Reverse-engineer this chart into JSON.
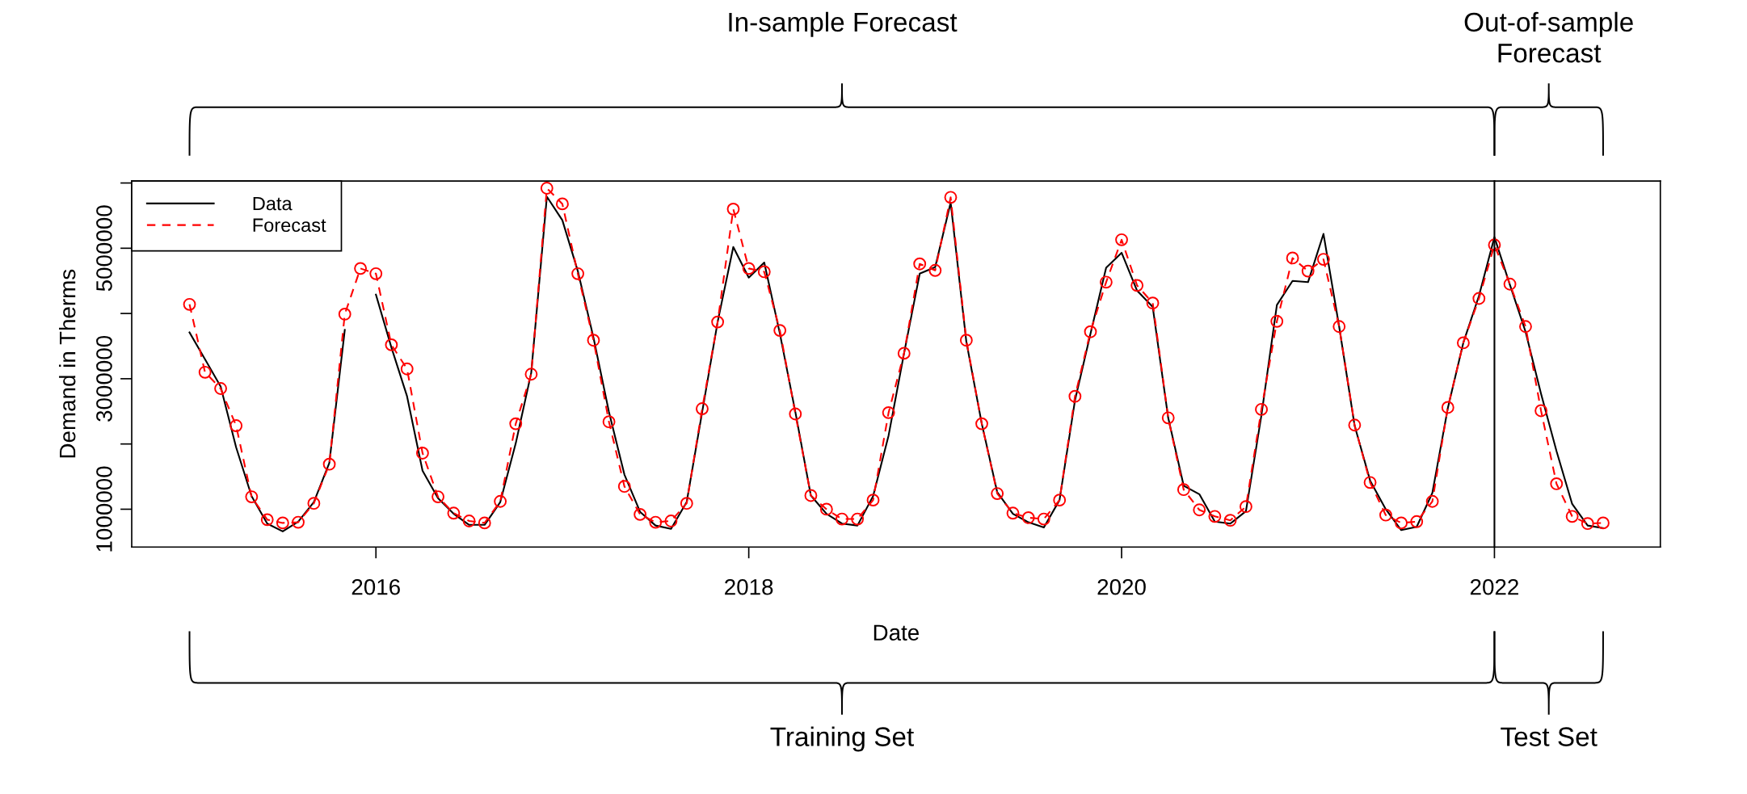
{
  "chart_data": {
    "type": "line",
    "xlabel": "Date",
    "ylabel": "Demand in Therms",
    "x": [
      2015.0,
      2015.083,
      2015.167,
      2015.25,
      2015.333,
      2015.417,
      2015.5,
      2015.583,
      2015.667,
      2015.75,
      2015.833,
      2015.917,
      2016.0,
      2016.083,
      2016.167,
      2016.25,
      2016.333,
      2016.417,
      2016.5,
      2016.583,
      2016.667,
      2016.75,
      2016.833,
      2016.917,
      2017.0,
      2017.083,
      2017.167,
      2017.25,
      2017.333,
      2017.417,
      2017.5,
      2017.583,
      2017.667,
      2017.75,
      2017.833,
      2017.917,
      2018.0,
      2018.083,
      2018.167,
      2018.25,
      2018.333,
      2018.417,
      2018.5,
      2018.583,
      2018.667,
      2018.75,
      2018.833,
      2018.917,
      2019.0,
      2019.083,
      2019.167,
      2019.25,
      2019.333,
      2019.417,
      2019.5,
      2019.583,
      2019.667,
      2019.75,
      2019.833,
      2019.917,
      2020.0,
      2020.083,
      2020.167,
      2020.25,
      2020.333,
      2020.417,
      2020.5,
      2020.583,
      2020.667,
      2020.75,
      2020.833,
      2020.917,
      2021.0,
      2021.083,
      2021.167,
      2021.25,
      2021.333,
      2021.417,
      2021.5,
      2021.583,
      2021.667,
      2021.75,
      2021.833,
      2021.917,
      2022.0,
      2022.083,
      2022.167,
      2022.25,
      2022.333,
      2022.417,
      2022.5,
      2022.583
    ],
    "series": [
      {
        "name": "Data",
        "color": "#000000",
        "marker": "none",
        "line_style": "solid",
        "values": [
          3710000,
          3300000,
          2880000,
          1950000,
          1200000,
          780000,
          660000,
          810000,
          1110000,
          1710000,
          3750000,
          null,
          4290000,
          3480000,
          2730000,
          1590000,
          1170000,
          930000,
          760000,
          760000,
          1110000,
          2010000,
          3090000,
          5790000,
          5430000,
          4650000,
          3630000,
          2490000,
          1530000,
          960000,
          750000,
          700000,
          1110000,
          2490000,
          3870000,
          5020000,
          4550000,
          4780000,
          3690000,
          2490000,
          1210000,
          930000,
          780000,
          750000,
          1200000,
          2130000,
          3390000,
          4610000,
          4710000,
          5700000,
          3570000,
          2310000,
          1260000,
          930000,
          800000,
          720000,
          1140000,
          2670000,
          3690000,
          4700000,
          4930000,
          4350000,
          4100000,
          2400000,
          1360000,
          1230000,
          810000,
          780000,
          970000,
          2440000,
          4130000,
          4500000,
          4480000,
          5220000,
          3800000,
          2280000,
          1440000,
          1000000,
          680000,
          730000,
          1250000,
          2550000,
          3550000,
          4270000,
          5170000,
          4440000,
          3720000,
          2770000,
          1890000,
          1080000,
          750000,
          710000
        ]
      },
      {
        "name": "Forecast",
        "color": "#ff0000",
        "marker": "circle",
        "line_style": "dashed",
        "values": [
          4140000,
          3100000,
          2850000,
          2280000,
          1190000,
          840000,
          790000,
          800000,
          1090000,
          1690000,
          3990000,
          4690000,
          4610000,
          3520000,
          3150000,
          1860000,
          1190000,
          940000,
          820000,
          790000,
          1120000,
          2310000,
          3070000,
          5920000,
          5680000,
          4610000,
          3590000,
          2340000,
          1350000,
          920000,
          800000,
          820000,
          1090000,
          2540000,
          3870000,
          5600000,
          4690000,
          4640000,
          3740000,
          2460000,
          1210000,
          1000000,
          850000,
          850000,
          1140000,
          2480000,
          3390000,
          4760000,
          4660000,
          5780000,
          3590000,
          2310000,
          1240000,
          940000,
          870000,
          850000,
          1140000,
          2730000,
          3720000,
          4480000,
          5130000,
          4430000,
          4160000,
          2400000,
          1300000,
          990000,
          890000,
          830000,
          1040000,
          2530000,
          3880000,
          4850000,
          4650000,
          4830000,
          3800000,
          2290000,
          1410000,
          910000,
          790000,
          810000,
          1120000,
          2560000,
          3550000,
          4230000,
          5050000,
          4450000,
          3800000,
          2510000,
          1390000,
          890000,
          780000,
          790000
        ]
      }
    ],
    "xlim": [
      2014.69,
      2022.89
    ],
    "xticks": [
      2016,
      2018,
      2020,
      2022
    ],
    "ylim": [
      420000,
      6030000
    ],
    "yticks": [
      1000000,
      {
        "value": 2000000,
        "label": null
      },
      3000000,
      {
        "value": 4000000,
        "label": null
      },
      5000000,
      {
        "value": 6000000,
        "label": null
      }
    ],
    "ref_lines": [
      {
        "axis": "x",
        "value": 2022,
        "color": "#000000"
      }
    ],
    "annotations": [
      "In-sample Forecast",
      "Out-of-sample\nForecast",
      "Training Set",
      "Test Set"
    ],
    "legend": "top left",
    "grid": false
  }
}
